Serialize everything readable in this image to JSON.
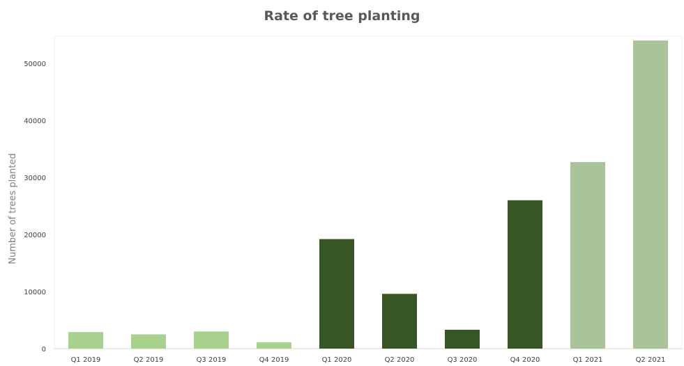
{
  "chart_data": {
    "type": "bar",
    "title": "Rate of tree planting",
    "xlabel": "",
    "ylabel": "Number of trees planted",
    "categories": [
      "Q1 2019",
      "Q2 2019",
      "Q3 2019",
      "Q4 2019",
      "Q1 2020",
      "Q2 2020",
      "Q3 2020",
      "Q4 2020",
      "Q1 2021",
      "Q2 2021"
    ],
    "values": [
      2900,
      2500,
      3000,
      1100,
      19200,
      9600,
      3300,
      26000,
      32700,
      54000
    ],
    "bar_colors": [
      "#a9d18e",
      "#a9d18e",
      "#a9d18e",
      "#a9d18e",
      "#375623",
      "#375623",
      "#375623",
      "#375623",
      "#a9c49b",
      "#a9c49b"
    ],
    "ylim": [
      0,
      55000
    ],
    "yticks": [
      0,
      10000,
      20000,
      30000,
      40000,
      50000
    ],
    "grid": false,
    "legend": "none"
  }
}
